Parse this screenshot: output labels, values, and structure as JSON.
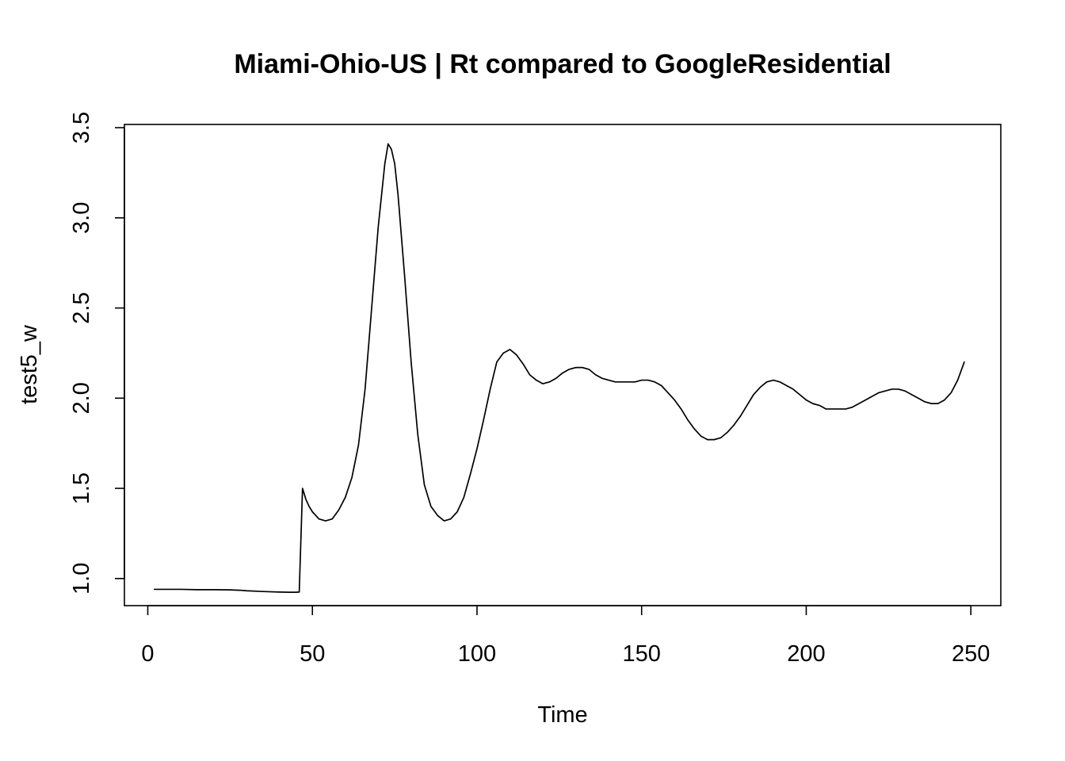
{
  "chart_data": {
    "type": "line",
    "title": "Miami-Ohio-US | Rt compared to GoogleResidential",
    "xlabel": "Time",
    "ylabel": "test5_w",
    "xlim": [
      -7.1,
      259.1
    ],
    "ylim": [
      0.8497,
      3.5178
    ],
    "grid": false,
    "x_ticks": [
      0,
      50,
      100,
      150,
      200,
      250
    ],
    "y_ticks": [
      1.0,
      1.5,
      2.0,
      2.5,
      3.0,
      3.5
    ],
    "x_tick_labels": [
      "0",
      "50",
      "100",
      "150",
      "200",
      "250"
    ],
    "y_tick_labels": [
      "1.0",
      "1.5",
      "2.0",
      "2.5",
      "3.0",
      "3.5"
    ],
    "series": [
      {
        "x": [
          2,
          5,
          10,
          15,
          20,
          25,
          28,
          30,
          35,
          40,
          43,
          45,
          46,
          47,
          48,
          49,
          50,
          52,
          54,
          56,
          58,
          60,
          62,
          64,
          66,
          68,
          70,
          72,
          73,
          74,
          75,
          76,
          78,
          80,
          82,
          84,
          86,
          88,
          90,
          92,
          94,
          96,
          98,
          100,
          102,
          104,
          106,
          108,
          110,
          112,
          114,
          116,
          118,
          120,
          122,
          124,
          126,
          128,
          130,
          132,
          134,
          136,
          138,
          140,
          142,
          144,
          146,
          148,
          150,
          152,
          154,
          156,
          158,
          160,
          162,
          164,
          166,
          168,
          170,
          172,
          174,
          176,
          178,
          180,
          182,
          184,
          186,
          188,
          190,
          192,
          194,
          196,
          198,
          200,
          202,
          204,
          205,
          206,
          208,
          210,
          212,
          214,
          216,
          218,
          220,
          222,
          224,
          226,
          228,
          230,
          232,
          234,
          236,
          238,
          240,
          242,
          244,
          246,
          248
        ],
        "y": [
          0.94,
          0.94,
          0.94,
          0.938,
          0.938,
          0.937,
          0.935,
          0.932,
          0.928,
          0.925,
          0.924,
          0.924,
          0.925,
          1.5,
          1.44,
          1.4,
          1.37,
          1.33,
          1.32,
          1.33,
          1.38,
          1.45,
          1.56,
          1.74,
          2.05,
          2.5,
          2.95,
          3.3,
          3.41,
          3.38,
          3.3,
          3.13,
          2.68,
          2.2,
          1.8,
          1.52,
          1.4,
          1.35,
          1.32,
          1.33,
          1.37,
          1.45,
          1.58,
          1.72,
          1.88,
          2.05,
          2.2,
          2.25,
          2.27,
          2.24,
          2.19,
          2.13,
          2.1,
          2.08,
          2.09,
          2.11,
          2.14,
          2.16,
          2.17,
          2.17,
          2.16,
          2.13,
          2.11,
          2.1,
          2.09,
          2.09,
          2.09,
          2.09,
          2.1,
          2.1,
          2.09,
          2.07,
          2.03,
          1.99,
          1.94,
          1.88,
          1.83,
          1.79,
          1.77,
          1.77,
          1.78,
          1.81,
          1.85,
          1.9,
          1.96,
          2.02,
          2.06,
          2.09,
          2.1,
          2.09,
          2.07,
          2.05,
          2.02,
          1.99,
          1.97,
          1.96,
          1.95,
          1.94,
          1.94,
          1.94,
          1.94,
          1.95,
          1.97,
          1.99,
          2.01,
          2.03,
          2.04,
          2.05,
          2.05,
          2.04,
          2.02,
          2.0,
          1.98,
          1.97,
          1.97,
          1.99,
          2.03,
          2.1,
          2.2
        ]
      }
    ]
  }
}
